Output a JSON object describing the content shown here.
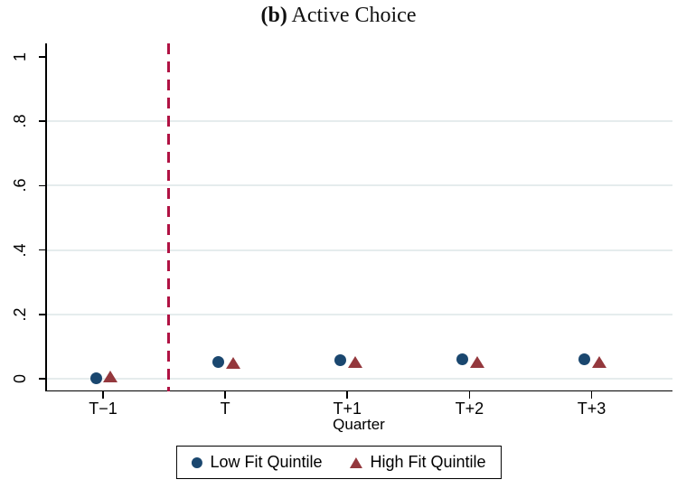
{
  "figure": {
    "title_prefix": "(b)",
    "title_text": " Active Choice"
  },
  "chart_data": {
    "type": "scatter",
    "title": "(b) Active Choice",
    "xlabel": "Quarter",
    "ylabel": "",
    "categories": [
      "T−1",
      "T",
      "T+1",
      "T+2",
      "T+3"
    ],
    "ylim": [
      0,
      1
    ],
    "y_ticks": [
      0,
      0.2,
      0.4,
      0.6,
      0.8,
      1
    ],
    "y_tick_labels": [
      "0",
      ".2",
      ".4",
      ".6",
      ".8",
      "1"
    ],
    "grid": true,
    "gridline_values": [
      0,
      0.2,
      0.4,
      0.6,
      0.8
    ],
    "series": [
      {
        "name": "Low Fit Quintile",
        "marker": "circle",
        "color": "#1a476f",
        "values": [
          0.001,
          0.053,
          0.057,
          0.059,
          0.059
        ]
      },
      {
        "name": "High Fit Quintile",
        "marker": "triangle",
        "color": "#94383d",
        "values": [
          0.006,
          0.048,
          0.051,
          0.051,
          0.052
        ]
      }
    ],
    "vline": {
      "between": [
        "T−1",
        "T"
      ],
      "style": "dashed",
      "color": "#b01243"
    },
    "legend_position": "bottom",
    "colors": {
      "gridline": "#e5eced",
      "axis": "#000000",
      "background": "#ffffff"
    }
  }
}
